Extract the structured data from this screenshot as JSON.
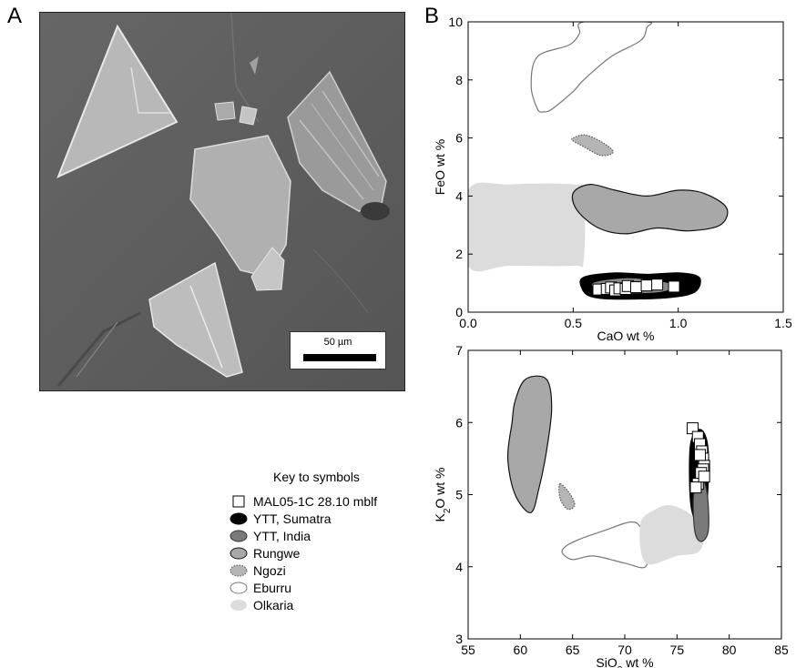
{
  "figure": {
    "panel_a_label": "A",
    "panel_b_label": "B",
    "scale_bar_label": "50 µm"
  },
  "key": {
    "title": "Key to symbols",
    "items": [
      {
        "label": "MAL05-1C 28.10 mblf",
        "symbol": "open-square"
      },
      {
        "label": "YTT, Sumatra",
        "symbol": "ellipse",
        "fill": "#000000"
      },
      {
        "label": "YTT, India",
        "symbol": "ellipse",
        "fill": "#7a7a7a"
      },
      {
        "label": "Rungwe",
        "symbol": "ellipse",
        "fill": "#a8a8a8"
      },
      {
        "label": "Ngozi",
        "symbol": "ellipse-dotted",
        "fill": "#b5b5b5"
      },
      {
        "label": "Eburru",
        "symbol": "ellipse",
        "fill": "#ffffff"
      },
      {
        "label": "Olkaria",
        "symbol": "ellipse-noline",
        "fill": "#dcdcdc"
      }
    ]
  },
  "chart_data": [
    {
      "type": "scatter",
      "xlabel": "CaO wt %",
      "ylabel": "FeO wt %",
      "xlim": [
        0,
        1.5
      ],
      "ylim": [
        0,
        10
      ],
      "xticks": [
        "0.0",
        "0.5",
        "1.0",
        "1.5"
      ],
      "yticks": [
        "0",
        "2",
        "4",
        "6",
        "8",
        "10"
      ],
      "fields": [
        {
          "name": "Eburru",
          "fill": "#ffffff",
          "stroke": "#777777",
          "points": [
            [
              0.33,
              7.0
            ],
            [
              0.3,
              7.8
            ],
            [
              0.33,
              8.8
            ],
            [
              0.48,
              9.2
            ],
            [
              0.53,
              9.6
            ],
            [
              0.55,
              10
            ],
            [
              0.85,
              10
            ],
            [
              0.85,
              9.8
            ],
            [
              0.82,
              9.35
            ],
            [
              0.68,
              8.8
            ],
            [
              0.55,
              8.0
            ],
            [
              0.5,
              7.6
            ],
            [
              0.4,
              7.0
            ],
            [
              0.36,
              6.9
            ]
          ]
        },
        {
          "name": "Ngozi",
          "fill": "#b5b5b5",
          "stroke": "#555555",
          "dotted": true,
          "points": [
            [
              0.5,
              6.0
            ],
            [
              0.56,
              6.1
            ],
            [
              0.65,
              5.8
            ],
            [
              0.69,
              5.5
            ],
            [
              0.63,
              5.4
            ],
            [
              0.55,
              5.7
            ],
            [
              0.5,
              5.9
            ]
          ]
        },
        {
          "name": "Olkaria",
          "fill": "#dcdcdc",
          "stroke": "none",
          "points": [
            [
              0.0,
              4.2
            ],
            [
              0.2,
              4.4
            ],
            [
              0.5,
              4.4
            ],
            [
              0.55,
              4.1
            ],
            [
              0.55,
              1.8
            ],
            [
              0.5,
              1.6
            ],
            [
              0.2,
              1.6
            ],
            [
              0.0,
              1.6
            ]
          ]
        },
        {
          "name": "Rungwe",
          "fill": "#a8a8a8",
          "stroke": "#111111",
          "points": [
            [
              0.5,
              4.1
            ],
            [
              0.58,
              4.4
            ],
            [
              0.7,
              4.2
            ],
            [
              0.85,
              4.0
            ],
            [
              1.0,
              4.2
            ],
            [
              1.12,
              4.1
            ],
            [
              1.23,
              3.6
            ],
            [
              1.2,
              3.0
            ],
            [
              1.05,
              2.8
            ],
            [
              0.9,
              2.9
            ],
            [
              0.75,
              2.7
            ],
            [
              0.62,
              2.9
            ],
            [
              0.52,
              3.5
            ]
          ]
        },
        {
          "name": "YTT, Sumatra",
          "fill": "#000000",
          "stroke": "#000000",
          "points": [
            [
              0.55,
              1.2
            ],
            [
              0.7,
              1.35
            ],
            [
              0.85,
              1.3
            ],
            [
              1.0,
              1.35
            ],
            [
              1.1,
              1.2
            ],
            [
              1.08,
              0.7
            ],
            [
              0.95,
              0.5
            ],
            [
              0.7,
              0.45
            ],
            [
              0.58,
              0.55
            ],
            [
              0.54,
              0.85
            ]
          ]
        },
        {
          "name": "YTT, India",
          "fill": "#888888",
          "stroke": "#888888",
          "points": [
            [
              0.6,
              1.0
            ],
            [
              0.75,
              1.15
            ],
            [
              0.9,
              1.05
            ],
            [
              0.98,
              0.9
            ],
            [
              0.9,
              0.7
            ],
            [
              0.72,
              0.68
            ],
            [
              0.62,
              0.8
            ]
          ]
        }
      ],
      "series": [
        {
          "name": "MAL05-1C 28.10 mblf",
          "marker": "open-square",
          "x": [
            0.62,
            0.66,
            0.68,
            0.7,
            0.72,
            0.75,
            0.76,
            0.8,
            0.85,
            0.9,
            0.98
          ],
          "y": [
            0.78,
            0.8,
            0.85,
            0.75,
            0.82,
            0.8,
            0.9,
            0.86,
            0.92,
            0.95,
            0.88
          ]
        }
      ]
    },
    {
      "type": "scatter",
      "xlabel": "SiO2 wt %",
      "ylabel": "K2O wt %",
      "xlim": [
        55,
        85
      ],
      "ylim": [
        3,
        7
      ],
      "xticks": [
        "55",
        "60",
        "65",
        "70",
        "75",
        "80",
        "85"
      ],
      "yticks": [
        "3",
        "4",
        "5",
        "6",
        "7"
      ],
      "fields": [
        {
          "name": "Eburru",
          "fill": "#ffffff",
          "stroke": "#777777",
          "points": [
            [
              64.5,
              4.3
            ],
            [
              66.0,
              4.4
            ],
            [
              68.0,
              4.5
            ],
            [
              70.5,
              4.62
            ],
            [
              71.5,
              4.55
            ],
            [
              72.0,
              4.3
            ],
            [
              72.0,
              4.0
            ],
            [
              70.0,
              4.05
            ],
            [
              67.0,
              4.15
            ],
            [
              65.0,
              4.1
            ],
            [
              64.0,
              4.2
            ]
          ]
        },
        {
          "name": "Olkaria",
          "fill": "#dcdcdc",
          "stroke": "none",
          "points": [
            [
              71.5,
              4.6
            ],
            [
              73.0,
              4.8
            ],
            [
              74.5,
              4.85
            ],
            [
              76.5,
              4.7
            ],
            [
              77.5,
              4.4
            ],
            [
              77.0,
              4.2
            ],
            [
              75.0,
              4.15
            ],
            [
              72.0,
              4.05
            ]
          ]
        },
        {
          "name": "Rungwe",
          "fill": "#a8a8a8",
          "stroke": "#111111",
          "points": [
            [
              59.5,
              6.3
            ],
            [
              60.5,
              6.6
            ],
            [
              62.5,
              6.6
            ],
            [
              63.0,
              6.2
            ],
            [
              62.5,
              5.6
            ],
            [
              61.8,
              5.1
            ],
            [
              61.0,
              4.75
            ],
            [
              59.5,
              5.0
            ],
            [
              58.8,
              5.5
            ],
            [
              59.2,
              6.0
            ]
          ]
        },
        {
          "name": "Ngozi",
          "fill": "#b5b5b5",
          "stroke": "#555555",
          "dotted": true,
          "points": [
            [
              63.8,
              5.15
            ],
            [
              64.8,
              5.0
            ],
            [
              65.2,
              4.85
            ],
            [
              64.5,
              4.8
            ],
            [
              63.8,
              4.95
            ]
          ]
        },
        {
          "name": "YTT, Sumatra",
          "fill": "#000000",
          "stroke": "#000000",
          "points": [
            [
              76.3,
              5.7
            ],
            [
              77.3,
              5.9
            ],
            [
              78.0,
              5.6
            ],
            [
              77.8,
              4.8
            ],
            [
              77.0,
              4.6
            ],
            [
              76.3,
              4.9
            ]
          ]
        },
        {
          "name": "YTT, India",
          "fill": "#7a7a7a",
          "stroke": "#333333",
          "points": [
            [
              76.6,
              5.0
            ],
            [
              77.3,
              5.25
            ],
            [
              77.9,
              5.0
            ],
            [
              78.0,
              4.5
            ],
            [
              77.3,
              4.35
            ],
            [
              76.7,
              4.5
            ]
          ]
        }
      ],
      "series": [
        {
          "name": "MAL05-1C 28.10 mblf",
          "marker": "open-square",
          "x": [
            76.5,
            77.0,
            77.2,
            77.4,
            77.5,
            77.6,
            77.5,
            77.3,
            77.0,
            76.8,
            77.6,
            77.2
          ],
          "y": [
            5.92,
            5.8,
            5.7,
            5.6,
            5.5,
            5.4,
            5.35,
            5.3,
            5.15,
            5.1,
            5.25,
            5.55
          ]
        }
      ]
    }
  ]
}
